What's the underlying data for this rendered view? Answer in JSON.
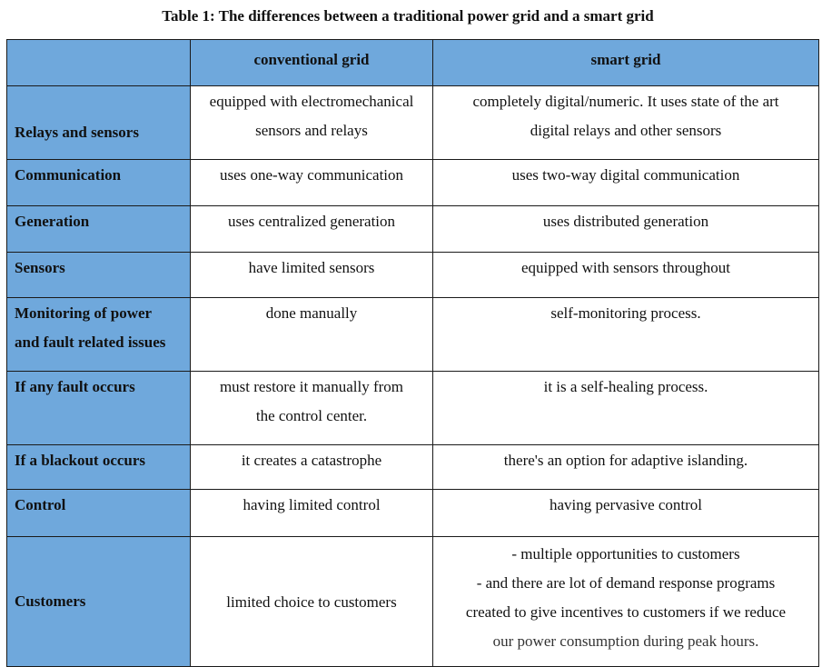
{
  "caption": "Table 1: The differences between a traditional power grid and a smart grid",
  "columns": [
    "",
    "conventional grid",
    "smart grid"
  ],
  "rows": [
    {
      "label": "Relays and sensors",
      "conventional": [
        "equipped with electromechanical",
        "sensors and relays"
      ],
      "smart": [
        "completely digital/numeric. It uses state of the art",
        "digital relays and other sensors"
      ]
    },
    {
      "label": "Communication",
      "conventional": [
        "uses one-way communication"
      ],
      "smart": [
        "uses two-way digital communication"
      ]
    },
    {
      "label": "Generation",
      "conventional": [
        "uses centralized generation"
      ],
      "smart": [
        "uses distributed generation"
      ]
    },
    {
      "label": "Sensors",
      "conventional": [
        "have limited sensors"
      ],
      "smart": [
        "equipped with sensors throughout"
      ]
    },
    {
      "label": "Monitoring of power and fault related issues",
      "conventional": [
        "done manually"
      ],
      "smart": [
        "self-monitoring process."
      ]
    },
    {
      "label": "If any fault occurs",
      "conventional": [
        "must restore it manually from",
        "the control center."
      ],
      "smart": [
        "it is a self-healing process."
      ]
    },
    {
      "label": "If a blackout occurs",
      "conventional": [
        "it creates a catastrophe"
      ],
      "smart": [
        "there's an option for adaptive islanding."
      ]
    },
    {
      "label": "Control",
      "conventional": [
        "having limited control"
      ],
      "smart": [
        "having pervasive control"
      ]
    },
    {
      "label": "Customers",
      "conventional": [
        "limited choice to customers"
      ],
      "smart": [
        "- multiple opportunities to customers",
        "-  and there are lot of demand response programs",
        "created to give incentives to customers if we reduce",
        "our power consumption during peak hours."
      ]
    }
  ]
}
